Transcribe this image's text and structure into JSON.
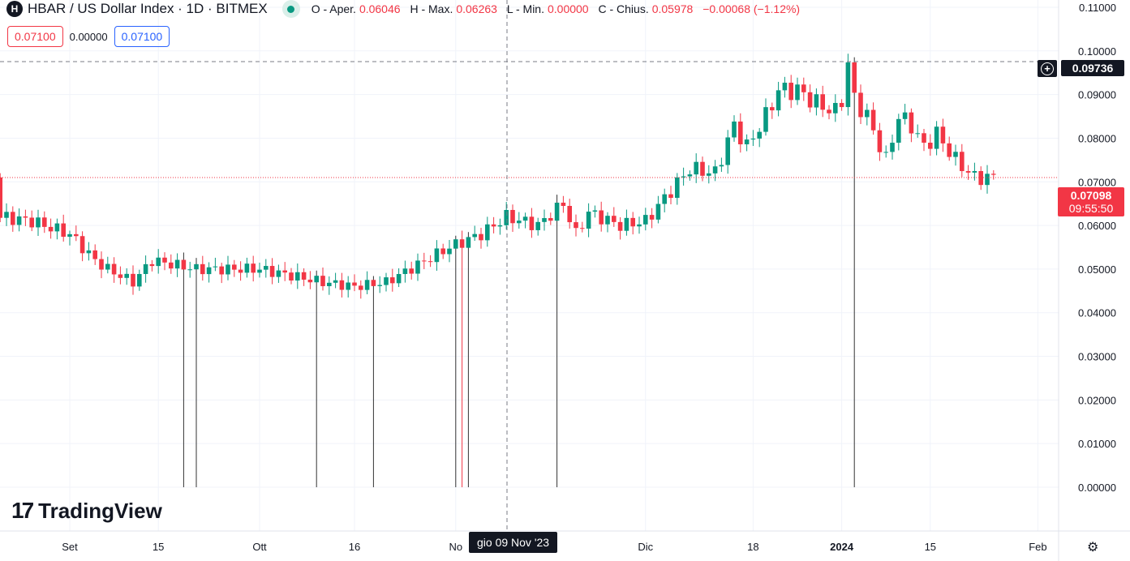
{
  "header": {
    "symbol": "HBAR / US Dollar Index · 1D · BITMEX",
    "o_label": "O - Aper.",
    "o": "0.06046",
    "h_label": "H - Max.",
    "h": "0.06263",
    "l_label": "L - Min.",
    "l": "0.00000",
    "c_label": "C - Chius.",
    "c": "0.05978",
    "chg": "−0.00068 (−1.12%)"
  },
  "order": {
    "sell": "0.07100",
    "spread": "0.00000",
    "buy": "0.07100"
  },
  "crosshair": {
    "price": "0.09736",
    "date": "gio 09 Nov '23"
  },
  "last": {
    "price": "0.07098",
    "countdown": "09:55:50"
  },
  "brand": "TradingView",
  "colors": {
    "up": "#089981",
    "down": "#f23645"
  },
  "chart_data": {
    "type": "candlestick",
    "ylim": [
      0,
      0.11
    ],
    "yticks": [
      "0.11000",
      "0.10000",
      "0.09000",
      "0.08000",
      "0.07000",
      "0.06000",
      "0.05000",
      "0.04000",
      "0.03000",
      "0.02000",
      "0.01000",
      "0.00000"
    ],
    "xticks": [
      {
        "label": "Set",
        "day": 0
      },
      {
        "label": "15",
        "day": 14
      },
      {
        "label": "Ott",
        "day": 30
      },
      {
        "label": "16",
        "day": 45
      },
      {
        "label": "No",
        "day": 61
      },
      {
        "label": "Dic",
        "day": 91
      },
      {
        "label": "18",
        "day": 108
      },
      {
        "label": "2024",
        "day": 122
      },
      {
        "label": "15",
        "day": 136
      },
      {
        "label": "Feb",
        "day": 153
      }
    ],
    "close_keypoints": [
      [
        -11,
        0.062
      ],
      [
        -6,
        0.061
      ],
      [
        0,
        0.058
      ],
      [
        4,
        0.052
      ],
      [
        6,
        0.05
      ],
      [
        10,
        0.047
      ],
      [
        13,
        0.052
      ],
      [
        20,
        0.05
      ],
      [
        30,
        0.05
      ],
      [
        40,
        0.047
      ],
      [
        45,
        0.046
      ],
      [
        50,
        0.047
      ],
      [
        55,
        0.051
      ],
      [
        60,
        0.055
      ],
      [
        65,
        0.058
      ],
      [
        67,
        0.06
      ],
      [
        69,
        0.062
      ],
      [
        74,
        0.06
      ],
      [
        78,
        0.065
      ],
      [
        80,
        0.058
      ],
      [
        82,
        0.063
      ],
      [
        87,
        0.06
      ],
      [
        91,
        0.061
      ],
      [
        95,
        0.068
      ],
      [
        98,
        0.073
      ],
      [
        102,
        0.072
      ],
      [
        105,
        0.083
      ],
      [
        107,
        0.078
      ],
      [
        110,
        0.085
      ],
      [
        112,
        0.091
      ],
      [
        115,
        0.091
      ],
      [
        118,
        0.088
      ],
      [
        121,
        0.086
      ],
      [
        122,
        0.089
      ],
      [
        123,
        0.097
      ],
      [
        124,
        0.089
      ],
      [
        126,
        0.085
      ],
      [
        129,
        0.075
      ],
      [
        131,
        0.085
      ],
      [
        133,
        0.083
      ],
      [
        135,
        0.078
      ],
      [
        137,
        0.081
      ],
      [
        140,
        0.075
      ],
      [
        143,
        0.071
      ],
      [
        146,
        0.071
      ]
    ],
    "zero_low_days": [
      18,
      20,
      39,
      48,
      61,
      62,
      63,
      77,
      124
    ]
  }
}
